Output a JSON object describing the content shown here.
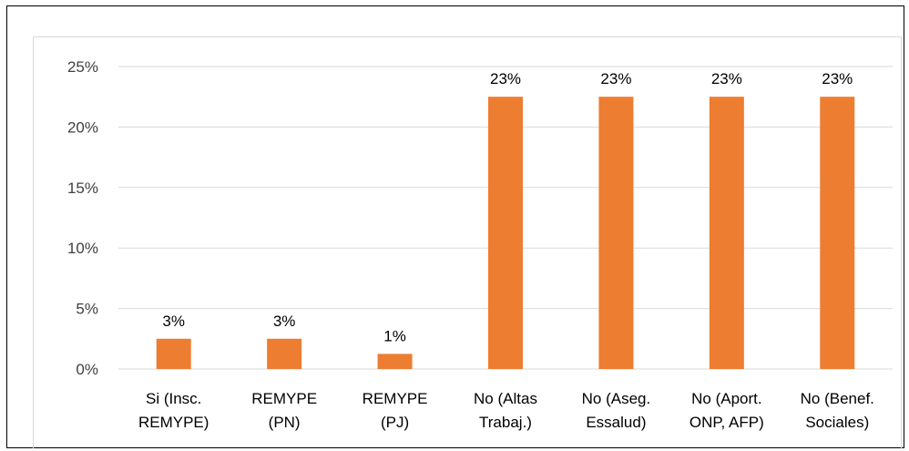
{
  "chart_data": {
    "type": "bar",
    "title": "",
    "xlabel": "",
    "ylabel": "",
    "categories": [
      [
        "Si (Insc.",
        "REMYPE)"
      ],
      [
        "REMYPE",
        "(PN)"
      ],
      [
        "REMYPE",
        "(PJ)"
      ],
      [
        "No (Altas",
        "Trabaj.)"
      ],
      [
        "No (Aseg.",
        "Essalud)"
      ],
      [
        "No (Aport.",
        "ONP, AFP)"
      ],
      [
        "No (Benef.",
        "Sociales)"
      ]
    ],
    "values": [
      0.025,
      0.025,
      0.0125,
      0.225,
      0.225,
      0.225,
      0.225
    ],
    "data_labels": [
      "3%",
      "3%",
      "1%",
      "23%",
      "23%",
      "23%",
      "23%"
    ],
    "y_ticks": [
      0,
      0.05,
      0.1,
      0.15,
      0.2,
      0.25
    ],
    "y_tick_labels": [
      "0%",
      "5%",
      "10%",
      "15%",
      "20%",
      "25%"
    ],
    "ylim": [
      0,
      0.25
    ],
    "grid": true,
    "legend": "none",
    "bar_color": "#ed7d31",
    "grid_color": "#d9d9d9"
  }
}
